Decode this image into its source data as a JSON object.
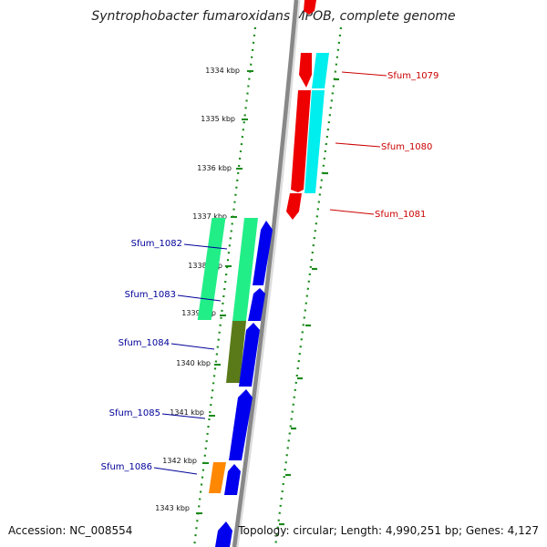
{
  "title": "Syntrophobacter fumaroxidans MPOB, complete genome",
  "footer": {
    "accession": "Accession: NC_008554",
    "info": "Topology: circular; Length: 4,990,251 bp; Genes: 4,127"
  },
  "colors": {
    "backbone": "#888888",
    "forward_label": "#cc0000",
    "reverse_label": "#000099",
    "ruler_dots": "#1a8a1a"
  },
  "ruler_ticks": [
    "1334 kbp",
    "1335 kbp",
    "1336 kbp",
    "1337 kbp",
    "1338 kbp",
    "1339 kbp",
    "1340 kbp",
    "1341 kbp",
    "1342 kbp",
    "1343 kbp"
  ],
  "gene_labels": [
    {
      "text": "Sfum_1079",
      "strand": "forward"
    },
    {
      "text": "Sfum_1080",
      "strand": "forward"
    },
    {
      "text": "Sfum_1081",
      "strand": "forward"
    },
    {
      "text": "Sfum_1082",
      "strand": "reverse"
    },
    {
      "text": "Sfum_1083",
      "strand": "reverse"
    },
    {
      "text": "Sfum_1084",
      "strand": "reverse"
    },
    {
      "text": "Sfum_1085",
      "strand": "reverse"
    },
    {
      "text": "Sfum_1086",
      "strand": "reverse"
    }
  ],
  "feature_colors": {
    "forward_gene": "#ee0000",
    "reverse_gene": "#0000ee",
    "cyan_block": "#00eeee",
    "green_block": "#22ee88",
    "olive_block": "#5a7a1a",
    "orange_block": "#ff8800"
  }
}
